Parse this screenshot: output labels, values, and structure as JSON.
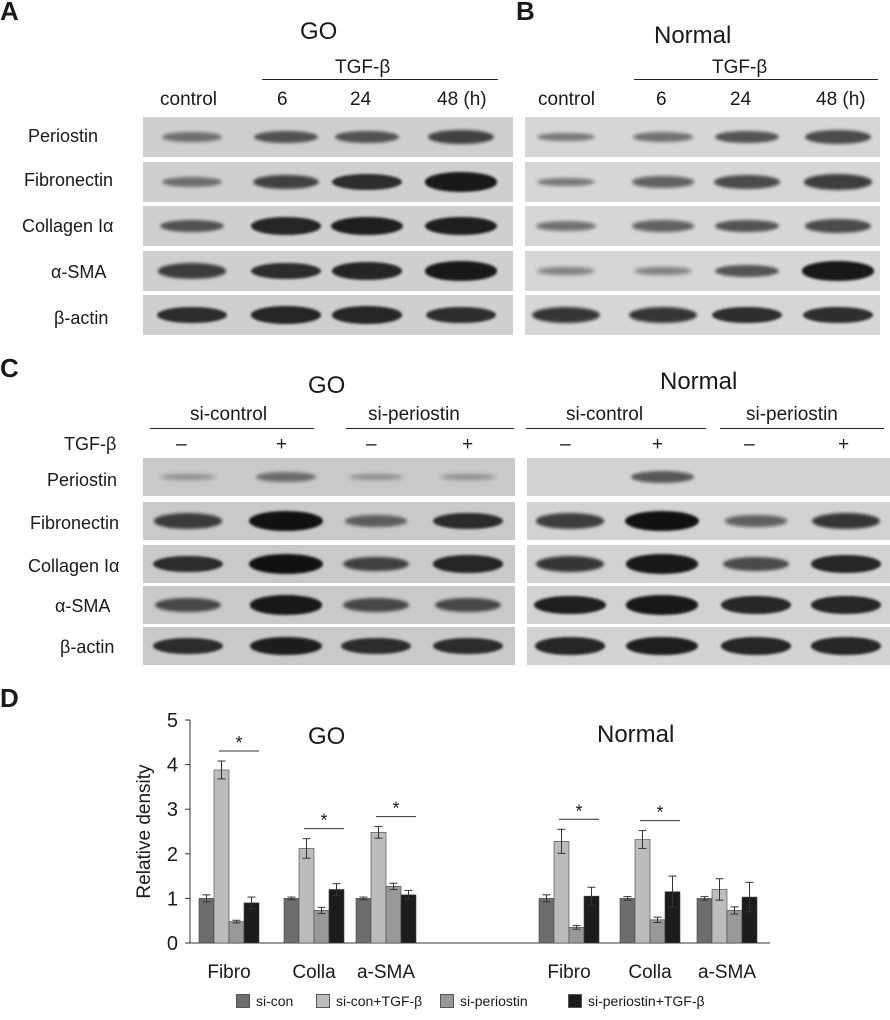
{
  "panels": {
    "a": {
      "letter": "A",
      "title": "GO",
      "treatment": "TGF-β",
      "lanes": [
        "control",
        "6",
        "24",
        "48 (h)"
      ],
      "rows": [
        "Periostin",
        "Fibronectin",
        "Collagen Iα",
        "α-SMA",
        "β-actin"
      ],
      "intensity": [
        [
          0.35,
          0.55,
          0.55,
          0.65
        ],
        [
          0.35,
          0.65,
          0.8,
          0.95
        ],
        [
          0.55,
          0.85,
          0.9,
          0.9
        ],
        [
          0.7,
          0.8,
          0.85,
          0.95
        ],
        [
          0.8,
          0.85,
          0.85,
          0.8
        ]
      ]
    },
    "b": {
      "letter": "B",
      "title": "Normal",
      "treatment": "TGF-β",
      "lanes": [
        "control",
        "6",
        "24",
        "48 (h)"
      ],
      "rows": [
        "Periostin",
        "Fibronectin",
        "Collagen Iα",
        "α-SMA",
        "β-actin"
      ],
      "intensity": [
        [
          0.3,
          0.35,
          0.55,
          0.6
        ],
        [
          0.3,
          0.45,
          0.6,
          0.7
        ],
        [
          0.35,
          0.45,
          0.55,
          0.6
        ],
        [
          0.25,
          0.25,
          0.55,
          0.95
        ],
        [
          0.75,
          0.75,
          0.8,
          0.8
        ]
      ]
    },
    "c": {
      "letter": "C",
      "treatment_label": "TGF-β",
      "groups": [
        "si-control",
        "si-periostin"
      ],
      "signs": [
        "–",
        "+",
        "–",
        "+"
      ],
      "rows": [
        "Periostin",
        "Fibronectin",
        "Collagen Iα",
        "α-SMA",
        "β-actin"
      ],
      "go_title": "GO",
      "normal_title": "Normal",
      "go_intensity": [
        [
          0.1,
          0.35,
          0.1,
          0.1
        ],
        [
          0.7,
          1.0,
          0.45,
          0.8
        ],
        [
          0.8,
          1.0,
          0.65,
          0.85
        ],
        [
          0.6,
          0.95,
          0.6,
          0.6
        ],
        [
          0.8,
          0.9,
          0.8,
          0.8
        ]
      ],
      "normal_intensity": [
        [
          0.0,
          0.5,
          0.0,
          0.0
        ],
        [
          0.7,
          1.0,
          0.45,
          0.75
        ],
        [
          0.75,
          0.95,
          0.6,
          0.85
        ],
        [
          0.9,
          0.95,
          0.85,
          0.85
        ],
        [
          0.85,
          0.9,
          0.85,
          0.85
        ]
      ]
    }
  },
  "chart_data": {
    "letter": "D",
    "type": "bar",
    "ylabel": "Relative density",
    "ylim": [
      0,
      5
    ],
    "yticks": [
      "0",
      "1",
      "2",
      "3",
      "4",
      "5"
    ],
    "panel_titles": [
      "GO",
      "Normal"
    ],
    "categories": [
      "Fibro",
      "Colla",
      "a-SMA",
      "Fibro",
      "Colla",
      "a-SMA"
    ],
    "significance_mark": "*",
    "series": [
      {
        "name": "si-con",
        "color": "#6d6d6d",
        "values": [
          1.0,
          1.0,
          1.0,
          1.0,
          1.0,
          1.0
        ],
        "errors": [
          0.08,
          0.03,
          0.03,
          0.08,
          0.04,
          0.04
        ]
      },
      {
        "name": "si-con+TGF-β",
        "color": "#bcbcbc",
        "values": [
          3.88,
          2.12,
          2.48,
          2.28,
          2.32,
          1.2
        ],
        "errors": [
          0.2,
          0.22,
          0.13,
          0.27,
          0.2,
          0.24
        ]
      },
      {
        "name": "si-periostin",
        "color": "#999999",
        "values": [
          0.48,
          0.73,
          1.27,
          0.35,
          0.52,
          0.73
        ],
        "errors": [
          0.03,
          0.07,
          0.07,
          0.04,
          0.06,
          0.08
        ]
      },
      {
        "name": "si-periostin+TGF-β",
        "color": "#1c1c1c",
        "values": [
          0.9,
          1.2,
          1.08,
          1.05,
          1.15,
          1.03
        ],
        "errors": [
          0.13,
          0.13,
          0.1,
          0.2,
          0.35,
          0.33
        ]
      }
    ],
    "significance": [
      0,
      1,
      2,
      3,
      4
    ]
  }
}
